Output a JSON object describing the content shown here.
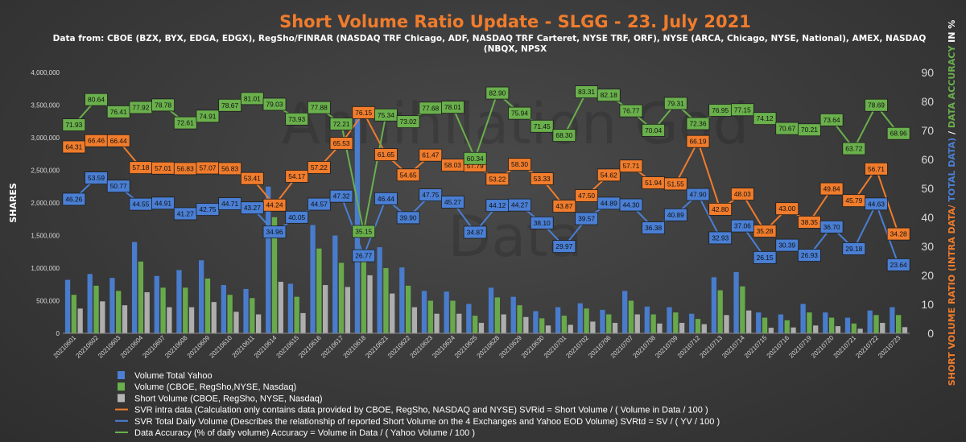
{
  "chart_data": {
    "type": "bar+line",
    "title": "Short Volume Ratio Update - SLGG - 23. July 2021",
    "subtitle_lines": [
      "Data from: CBOE (BZX, BYX, EDGA, EDGX), RegSho/FINRAR (NASDAQ TRF Chicago, ADF, NASDAQ TRF Carteret, NYSE TRF, ORF), NYSE (ARCA, Chicago, NYSE, National), AMEX, NASDAQ",
      "(NBQX, NPSX"
    ],
    "watermark_lines": [
      "Annihilation God",
      "Data"
    ],
    "ylabel_left": "SHARES",
    "ylabel_right_parts": [
      {
        "text": "SHORT VOLUME RATIO (INTRA DATA/ ",
        "color": "#f07c2c"
      },
      {
        "text": "TOTAL DATA)",
        "color": "#4a7fd4"
      },
      {
        "text": " / ",
        "color": "#ffffff"
      },
      {
        "text": "DATA ACCURACY",
        "color": "#6ab04c"
      },
      {
        "text": " IN %",
        "color": "#ffffff"
      }
    ],
    "ylim_left": [
      0,
      4000000
    ],
    "yticks_left": [
      "0",
      "500,000",
      "1,000,000",
      "1,500,000",
      "2,000,000",
      "2,500,000",
      "3,000,000",
      "3,500,000",
      "4,000,000"
    ],
    "ylim_right": [
      0,
      90
    ],
    "yticks_right": [
      "0",
      "10",
      "20",
      "30",
      "40",
      "50",
      "60",
      "70",
      "80",
      "90"
    ],
    "categories": [
      "20210601",
      "20210602",
      "20210603",
      "20210604",
      "20210607",
      "20210608",
      "20210609",
      "20210610",
      "20210611",
      "20210614",
      "20210615",
      "20210616",
      "20210617",
      "20210618",
      "20210621",
      "20210622",
      "20210623",
      "20210624",
      "20210625",
      "20210628",
      "20210629",
      "20210630",
      "20210701",
      "20210702",
      "20210706",
      "20210707",
      "20210708",
      "20210709",
      "20210712",
      "20210713",
      "20210714",
      "20210715",
      "20210716",
      "20210719",
      "20210720",
      "20210721",
      "20210722",
      "20210723"
    ],
    "bar_series": [
      {
        "name": "Volume Total Yahoo",
        "color": "#4a7fd4",
        "values": [
          820000,
          910000,
          850000,
          1400000,
          880000,
          970000,
          1120000,
          740000,
          680000,
          2250000,
          760000,
          1660000,
          1500000,
          3300000,
          1320000,
          1010000,
          650000,
          640000,
          450000,
          700000,
          560000,
          340000,
          400000,
          460000,
          360000,
          650000,
          410000,
          400000,
          300000,
          860000,
          940000,
          320000,
          290000,
          450000,
          320000,
          240000,
          350000,
          400000
        ]
      },
      {
        "name": "Volume (CBOE, RegSho,NYSE, Nasdaq)",
        "color": "#6ab04c",
        "values": [
          590000,
          730000,
          650000,
          1100000,
          700000,
          700000,
          840000,
          590000,
          540000,
          1780000,
          560000,
          1300000,
          1080000,
          1170000,
          1000000,
          730000,
          500000,
          500000,
          270000,
          550000,
          430000,
          230000,
          270000,
          380000,
          290000,
          500000,
          290000,
          320000,
          220000,
          660000,
          720000,
          240000,
          200000,
          320000,
          240000,
          150000,
          280000,
          280000
        ]
      },
      {
        "name": "Short  Volume (CBOE, RegSho, NYSE, Nasdaq)",
        "color": "#b4b4b4",
        "values": [
          380000,
          490000,
          430000,
          630000,
          400000,
          400000,
          480000,
          330000,
          290000,
          790000,
          310000,
          740000,
          710000,
          890000,
          610000,
          400000,
          300000,
          300000,
          160000,
          290000,
          250000,
          120000,
          130000,
          180000,
          160000,
          290000,
          150000,
          160000,
          140000,
          280000,
          350000,
          85000,
          90000,
          120000,
          110000,
          70000,
          160000,
          95000
        ]
      }
    ],
    "line_series": [
      {
        "name": "SVR intra data (Calculation only contains data provided by CBOE, RegSho, NASDAQ and NYSE) SVRid = Short Volume / ( Volume in Data / 100 )",
        "color": "#f07c2c",
        "values": [
          64.31,
          66.46,
          66.44,
          57.18,
          57.01,
          56.83,
          57.07,
          56.83,
          53.41,
          44.24,
          54.17,
          57.22,
          65.53,
          76.15,
          61.65,
          54.65,
          61.47,
          58.03,
          57.79,
          53.22,
          58.3,
          53.33,
          43.87,
          47.5,
          54.62,
          57.71,
          51.94,
          51.55,
          66.19,
          42.8,
          48.03,
          35.28,
          43.0,
          38.35,
          49.84,
          45.79,
          56.71,
          34.28
        ]
      },
      {
        "name": "SVR Total Daily Volume (Describes the relationship of reported Short Volume on the 4 Exchanges and Yahoo EOD Volume) SVRtd = SV / ( YV / 100 )",
        "color": "#4a7fd4",
        "values": [
          46.26,
          53.59,
          50.77,
          44.55,
          44.91,
          41.27,
          42.75,
          44.71,
          43.27,
          34.96,
          40.05,
          44.57,
          47.32,
          26.77,
          46.44,
          39.9,
          47.75,
          45.27,
          34.87,
          44.12,
          44.27,
          38.1,
          29.97,
          39.57,
          44.89,
          44.3,
          36.38,
          40.89,
          47.9,
          32.93,
          37.06,
          26.15,
          30.39,
          26.93,
          36.7,
          29.18,
          44.63,
          23.64
        ]
      },
      {
        "name": "Data Accuracy (% of daily volume) Accuracy = Volume in Data / ( Yahoo Volume / 100 )",
        "color": "#6ab04c",
        "values": [
          71.93,
          80.64,
          76.41,
          77.92,
          78.78,
          72.61,
          74.91,
          78.67,
          81.01,
          79.03,
          73.93,
          77.88,
          72.21,
          35.15,
          75.34,
          73.02,
          77.68,
          78.01,
          60.34,
          82.9,
          75.94,
          71.45,
          68.3,
          83.31,
          82.18,
          76.77,
          70.04,
          79.31,
          72.36,
          76.95,
          77.15,
          74.12,
          70.67,
          70.21,
          73.64,
          63.72,
          78.69,
          68.96
        ]
      }
    ],
    "legend": [
      "Volume Total Yahoo",
      "Volume (CBOE, RegSho,NYSE, Nasdaq)",
      "Short  Volume (CBOE, RegSho, NYSE, Nasdaq)",
      "SVR intra data (Calculation only contains data provided by CBOE, RegSho, NASDAQ and NYSE) SVRid = Short Volume / ( Volume in Data / 100 )",
      "SVR Total Daily Volume (Describes the relationship of reported Short Volume on the 4 Exchanges and Yahoo EOD Volume) SVRtd = SV / ( YV / 100 )",
      "Data Accuracy (% of daily volume) Accuracy = Volume in Data / ( Yahoo Volume / 100 )"
    ],
    "legend_position": "bottom-left",
    "grid": false
  }
}
